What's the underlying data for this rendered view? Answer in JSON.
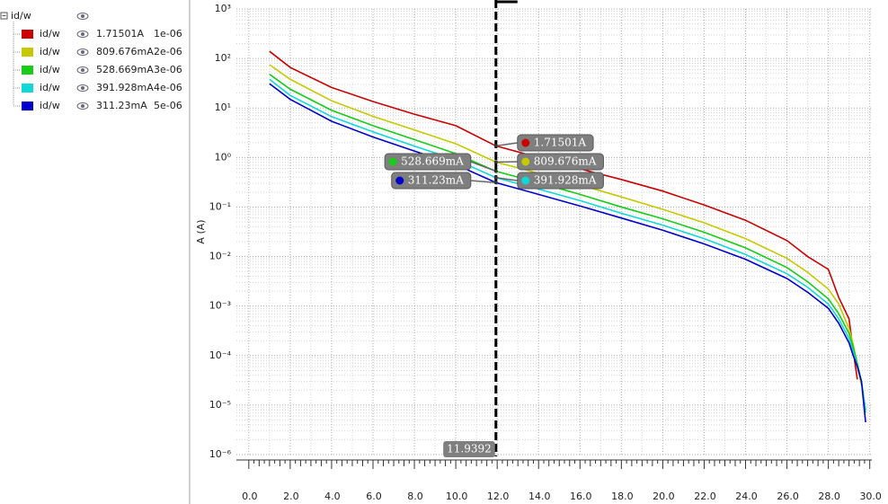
{
  "legend_root": "id/w",
  "chart_data": {
    "type": "line",
    "y_label": "A (A)",
    "log_y": true,
    "grid": true,
    "minor_grid": true,
    "x": [
      1,
      2,
      4,
      6,
      8,
      10,
      11.9392,
      14,
      16,
      18,
      20,
      22,
      24,
      26,
      27,
      28,
      28.5,
      29,
      29.2,
      29.4,
      29.6,
      29.8
    ],
    "xlim": [
      -0.6,
      30.1
    ],
    "xticks": [
      {
        "value": 0,
        "label": "0.0"
      },
      {
        "value": 2,
        "label": "2.0"
      },
      {
        "value": 4,
        "label": "4.0"
      },
      {
        "value": 6,
        "label": "6.0"
      },
      {
        "value": 8,
        "label": "8.0"
      },
      {
        "value": 10,
        "label": "10.0"
      },
      {
        "value": 12,
        "label": "12.0"
      },
      {
        "value": 14,
        "label": "14.0"
      },
      {
        "value": 16,
        "label": "16.0"
      },
      {
        "value": 18,
        "label": "18.0"
      },
      {
        "value": 20,
        "label": "20.0"
      },
      {
        "value": 22,
        "label": "22.0"
      },
      {
        "value": 24,
        "label": "24.0"
      },
      {
        "value": 26,
        "label": "26.0"
      },
      {
        "value": 28,
        "label": "28.0"
      },
      {
        "value": 30,
        "label": "30.0"
      }
    ],
    "ylim": [
      1e-06,
      1000
    ],
    "yticks": [
      {
        "value": 1e-06,
        "label": "10⁻⁶"
      },
      {
        "value": 1e-05,
        "label": "10⁻⁵"
      },
      {
        "value": 0.0001,
        "label": "10⁻⁴"
      },
      {
        "value": 0.001,
        "label": "10⁻³"
      },
      {
        "value": 0.01,
        "label": "10⁻²"
      },
      {
        "value": 0.1,
        "label": "10⁻¹"
      },
      {
        "value": 1,
        "label": "10⁰"
      },
      {
        "value": 10,
        "label": "10¹"
      },
      {
        "value": 100,
        "label": "10²"
      },
      {
        "value": 1000,
        "label": "10³"
      }
    ],
    "series": [
      {
        "name": "id/w",
        "param": "1e-06",
        "color": "#cc0000",
        "values": [
          140,
          66,
          26,
          13.5,
          7.5,
          4.4,
          1.71501,
          1.0,
          0.59,
          0.36,
          0.21,
          0.11,
          0.054,
          0.021,
          0.01,
          0.0055,
          0.0015,
          0.00055,
          0.000125,
          3.3e-05,
          null,
          null
        ]
      },
      {
        "name": "id/w",
        "param": "2e-06",
        "color": "#c8c800",
        "values": [
          75,
          38,
          14,
          6.8,
          3.6,
          1.9,
          0.809676,
          0.48,
          0.28,
          0.16,
          0.09,
          0.048,
          0.023,
          0.0092,
          0.0048,
          0.0022,
          0.0011,
          0.00035,
          0.00017,
          6e-05,
          2.5e-05,
          null
        ]
      },
      {
        "name": "id/w",
        "param": "3e-06",
        "color": "#18cc18",
        "values": [
          48,
          24,
          9,
          4.4,
          2.3,
          1.2,
          0.528669,
          0.31,
          0.18,
          0.1,
          0.058,
          0.031,
          0.015,
          0.006,
          0.0031,
          0.0014,
          0.0007,
          0.00028,
          0.00015,
          7e-05,
          3e-05,
          8e-06
        ]
      },
      {
        "name": "id/w",
        "param": "4e-06",
        "color": "#10d8d8",
        "values": [
          38,
          18,
          6.7,
          3.3,
          1.7,
          0.9,
          0.391928,
          0.23,
          0.135,
          0.075,
          0.043,
          0.023,
          0.011,
          0.0045,
          0.0024,
          0.0011,
          0.00055,
          0.00022,
          0.00012,
          6e-05,
          3e-05,
          7e-06
        ]
      },
      {
        "name": "id/w",
        "param": "5e-06",
        "color": "#0000cc",
        "values": [
          31,
          15,
          5.4,
          2.6,
          1.35,
          0.72,
          0.31123,
          0.18,
          0.105,
          0.06,
          0.034,
          0.018,
          0.0088,
          0.0036,
          0.0019,
          0.0009,
          0.00045,
          0.00018,
          0.0001,
          6e-05,
          3e-05,
          4.5e-06
        ]
      }
    ],
    "marker": {
      "x": 11.9392,
      "label": "11.9392",
      "readouts": [
        {
          "value": 1.71501,
          "label": "1.71501A"
        },
        {
          "value": 0.809676,
          "label": "809.676mA"
        },
        {
          "value": 0.528669,
          "label": "528.669mA"
        },
        {
          "value": 0.391928,
          "label": "391.928mA"
        },
        {
          "value": 0.31123,
          "label": "311.23mA"
        }
      ]
    }
  }
}
